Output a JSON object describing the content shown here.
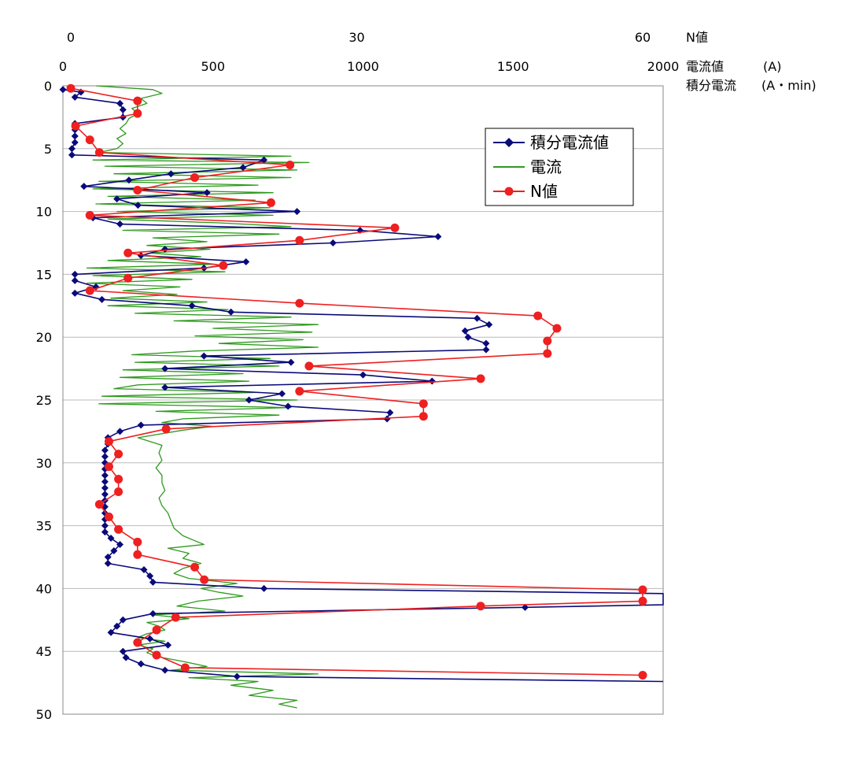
{
  "chart_data": {
    "type": "line",
    "y_axis": {
      "ticks": [
        0,
        5,
        10,
        15,
        20,
        25,
        30,
        35,
        40,
        45,
        50
      ],
      "range": [
        0,
        50
      ],
      "reversed": true
    },
    "x_axis_current": {
      "ticks": [
        0,
        500,
        1000,
        1500,
        2000
      ],
      "range": [
        0,
        2000
      ],
      "label": "電流値",
      "unit": "(A)"
    },
    "x_axis_integral": {
      "label": "積分電流",
      "unit": "(A・min)"
    },
    "x_axis_n": {
      "ticks": [
        0,
        30,
        60
      ],
      "range": [
        0,
        60
      ],
      "label": "N値"
    },
    "grid": "horizontal",
    "legend": {
      "position": "top-right",
      "entries": [
        "積分電流値",
        "電流",
        "N値"
      ]
    },
    "colors": {
      "integral": "#0a0a7a",
      "current": "#2e9a1e",
      "n": "#ee2020",
      "grid": "#bbbbbb"
    },
    "series": [
      {
        "name": "積分電流値",
        "axis": "x_axis_current",
        "points": [
          [
            0,
            0.3
          ],
          [
            60,
            0.5
          ],
          [
            40,
            0.9
          ],
          [
            190,
            1.4
          ],
          [
            200,
            1.9
          ],
          [
            200,
            2.5
          ],
          [
            40,
            3.0
          ],
          [
            40,
            3.5
          ],
          [
            40,
            4.0
          ],
          [
            40,
            4.5
          ],
          [
            30,
            5.0
          ],
          [
            30,
            5.5
          ],
          [
            670,
            5.9
          ],
          [
            600,
            6.5
          ],
          [
            360,
            7.0
          ],
          [
            220,
            7.5
          ],
          [
            70,
            8.0
          ],
          [
            480,
            8.5
          ],
          [
            180,
            9.0
          ],
          [
            250,
            9.5
          ],
          [
            780,
            10.0
          ],
          [
            100,
            10.5
          ],
          [
            190,
            11.0
          ],
          [
            990,
            11.5
          ],
          [
            1250,
            12.0
          ],
          [
            900,
            12.5
          ],
          [
            340,
            13.0
          ],
          [
            260,
            13.5
          ],
          [
            610,
            14.0
          ],
          [
            470,
            14.5
          ],
          [
            40,
            15.0
          ],
          [
            40,
            15.5
          ],
          [
            110,
            16.0
          ],
          [
            40,
            16.5
          ],
          [
            130,
            17.0
          ],
          [
            430,
            17.5
          ],
          [
            560,
            18.0
          ],
          [
            1380,
            18.5
          ],
          [
            1420,
            19.0
          ],
          [
            1340,
            19.5
          ],
          [
            1350,
            20.0
          ],
          [
            1410,
            20.5
          ],
          [
            1410,
            21.0
          ],
          [
            470,
            21.5
          ],
          [
            760,
            22.0
          ],
          [
            340,
            22.5
          ],
          [
            1000,
            23.0
          ],
          [
            1230,
            23.5
          ],
          [
            340,
            24.0
          ],
          [
            730,
            24.5
          ],
          [
            620,
            25.0
          ],
          [
            750,
            25.5
          ],
          [
            1090,
            26.0
          ],
          [
            1080,
            26.5
          ],
          [
            260,
            27.0
          ],
          [
            190,
            27.5
          ],
          [
            150,
            28.0
          ],
          [
            150,
            28.5
          ],
          [
            140,
            29.0
          ],
          [
            140,
            29.5
          ],
          [
            140,
            30.0
          ],
          [
            140,
            30.5
          ],
          [
            140,
            31.0
          ],
          [
            140,
            31.5
          ],
          [
            140,
            32.0
          ],
          [
            140,
            32.5
          ],
          [
            140,
            33.0
          ],
          [
            140,
            33.5
          ],
          [
            140,
            34.0
          ],
          [
            140,
            34.5
          ],
          [
            140,
            35.0
          ],
          [
            140,
            35.5
          ],
          [
            160,
            36.0
          ],
          [
            190,
            36.5
          ],
          [
            170,
            37.0
          ],
          [
            150,
            37.5
          ],
          [
            150,
            38.0
          ],
          [
            270,
            38.5
          ],
          [
            290,
            39.0
          ],
          [
            300,
            39.5
          ],
          [
            670,
            40.0
          ],
          [
            2000,
            40.4
          ],
          [
            2000,
            41.3
          ],
          [
            1540,
            41.5
          ],
          [
            300,
            42.0
          ],
          [
            200,
            42.5
          ],
          [
            180,
            43.0
          ],
          [
            160,
            43.5
          ],
          [
            290,
            44.0
          ],
          [
            350,
            44.5
          ],
          [
            200,
            45.0
          ],
          [
            210,
            45.5
          ],
          [
            260,
            46.0
          ],
          [
            340,
            46.5
          ],
          [
            580,
            47.0
          ],
          [
            2000,
            47.4
          ]
        ]
      },
      {
        "name": "電流",
        "axis": "x_axis_current",
        "points": [
          [
            110,
            0
          ],
          [
            300,
            0.3
          ],
          [
            330,
            0.6
          ],
          [
            260,
            1.0
          ],
          [
            280,
            1.4
          ],
          [
            230,
            1.8
          ],
          [
            250,
            2.2
          ],
          [
            220,
            2.6
          ],
          [
            210,
            3.0
          ],
          [
            190,
            3.4
          ],
          [
            210,
            3.8
          ],
          [
            180,
            4.2
          ],
          [
            200,
            4.6
          ],
          [
            180,
            5.0
          ],
          [
            120,
            5.3
          ],
          [
            760,
            5.6
          ],
          [
            100,
            5.9
          ],
          [
            820,
            6.1
          ],
          [
            140,
            6.4
          ],
          [
            780,
            6.7
          ],
          [
            170,
            7.0
          ],
          [
            760,
            7.3
          ],
          [
            120,
            7.6
          ],
          [
            650,
            7.9
          ],
          [
            100,
            8.2
          ],
          [
            700,
            8.5
          ],
          [
            150,
            8.8
          ],
          [
            640,
            9.1
          ],
          [
            110,
            9.4
          ],
          [
            690,
            9.7
          ],
          [
            180,
            10.0
          ],
          [
            700,
            10.3
          ],
          [
            150,
            10.6
          ],
          [
            520,
            10.9
          ],
          [
            760,
            11.2
          ],
          [
            200,
            11.5
          ],
          [
            720,
            11.8
          ],
          [
            300,
            12.1
          ],
          [
            480,
            12.4
          ],
          [
            280,
            12.7
          ],
          [
            490,
            13.0
          ],
          [
            290,
            13.3
          ],
          [
            460,
            13.6
          ],
          [
            150,
            13.9
          ],
          [
            510,
            14.2
          ],
          [
            80,
            14.5
          ],
          [
            540,
            14.8
          ],
          [
            100,
            15.1
          ],
          [
            430,
            15.4
          ],
          [
            80,
            15.7
          ],
          [
            390,
            16.0
          ],
          [
            200,
            16.3
          ],
          [
            380,
            16.6
          ],
          [
            160,
            16.9
          ],
          [
            480,
            17.2
          ],
          [
            150,
            17.5
          ],
          [
            550,
            17.8
          ],
          [
            240,
            18.1
          ],
          [
            760,
            18.4
          ],
          [
            370,
            18.7
          ],
          [
            850,
            19.0
          ],
          [
            500,
            19.3
          ],
          [
            830,
            19.6
          ],
          [
            440,
            19.9
          ],
          [
            800,
            20.2
          ],
          [
            520,
            20.5
          ],
          [
            850,
            20.8
          ],
          [
            440,
            21.1
          ],
          [
            230,
            21.4
          ],
          [
            690,
            21.7
          ],
          [
            240,
            22.0
          ],
          [
            720,
            22.3
          ],
          [
            200,
            22.6
          ],
          [
            600,
            22.9
          ],
          [
            190,
            23.2
          ],
          [
            620,
            23.5
          ],
          [
            250,
            23.8
          ],
          [
            170,
            24.1
          ],
          [
            650,
            24.4
          ],
          [
            130,
            24.7
          ],
          [
            780,
            25.0
          ],
          [
            120,
            25.3
          ],
          [
            760,
            25.6
          ],
          [
            310,
            25.9
          ],
          [
            720,
            26.2
          ],
          [
            400,
            26.5
          ],
          [
            330,
            26.8
          ],
          [
            500,
            27.1
          ],
          [
            400,
            27.4
          ],
          [
            250,
            28.0
          ],
          [
            330,
            28.6
          ],
          [
            320,
            29.2
          ],
          [
            330,
            29.8
          ],
          [
            310,
            30.4
          ],
          [
            330,
            31.0
          ],
          [
            330,
            31.6
          ],
          [
            340,
            32.2
          ],
          [
            320,
            32.8
          ],
          [
            330,
            33.4
          ],
          [
            350,
            34.0
          ],
          [
            360,
            34.6
          ],
          [
            370,
            35.2
          ],
          [
            400,
            35.8
          ],
          [
            440,
            36.2
          ],
          [
            470,
            36.5
          ],
          [
            350,
            36.8
          ],
          [
            420,
            37.2
          ],
          [
            400,
            37.6
          ],
          [
            460,
            38.0
          ],
          [
            400,
            38.4
          ],
          [
            370,
            38.8
          ],
          [
            420,
            39.2
          ],
          [
            580,
            39.6
          ],
          [
            460,
            40.0
          ],
          [
            520,
            40.3
          ],
          [
            600,
            40.6
          ],
          [
            450,
            41.0
          ],
          [
            380,
            41.4
          ],
          [
            540,
            41.8
          ],
          [
            300,
            42.1
          ],
          [
            420,
            42.4
          ],
          [
            280,
            42.7
          ],
          [
            320,
            43.0
          ],
          [
            340,
            43.3
          ],
          [
            280,
            43.6
          ],
          [
            250,
            43.9
          ],
          [
            340,
            44.2
          ],
          [
            250,
            44.5
          ],
          [
            300,
            44.8
          ],
          [
            280,
            45.1
          ],
          [
            310,
            45.4
          ],
          [
            400,
            45.8
          ],
          [
            480,
            46.2
          ],
          [
            360,
            46.5
          ],
          [
            850,
            46.8
          ],
          [
            420,
            47.1
          ],
          [
            650,
            47.4
          ],
          [
            560,
            47.7
          ],
          [
            700,
            48.1
          ],
          [
            620,
            48.5
          ],
          [
            780,
            48.9
          ],
          [
            720,
            49.2
          ],
          [
            780,
            49.5
          ]
        ]
      },
      {
        "name": "N値",
        "axis": "x_axis_n",
        "points": [
          [
            0,
            0.2
          ],
          [
            7,
            1.2
          ],
          [
            7,
            2.2
          ],
          [
            0.5,
            3.2
          ],
          [
            2,
            4.3
          ],
          [
            3,
            5.3
          ],
          [
            23,
            6.3
          ],
          [
            13,
            7.3
          ],
          [
            7,
            8.3
          ],
          [
            21,
            9.3
          ],
          [
            2,
            10.3
          ],
          [
            34,
            11.3
          ],
          [
            24,
            12.3
          ],
          [
            6,
            13.3
          ],
          [
            16,
            14.3
          ],
          [
            6,
            15.3
          ],
          [
            2,
            16.3
          ],
          [
            24,
            17.3
          ],
          [
            49,
            18.3
          ],
          [
            51,
            19.3
          ],
          [
            50,
            20.3
          ],
          [
            50,
            21.3
          ],
          [
            25,
            22.3
          ],
          [
            43,
            23.3
          ],
          [
            24,
            24.3
          ],
          [
            37,
            25.3
          ],
          [
            37,
            26.3
          ],
          [
            10,
            27.3
          ],
          [
            4,
            28.3
          ],
          [
            5,
            29.3
          ],
          [
            4,
            30.3
          ],
          [
            5,
            31.3
          ],
          [
            5,
            32.3
          ],
          [
            3,
            33.3
          ],
          [
            4,
            34.3
          ],
          [
            5,
            35.3
          ],
          [
            7,
            36.3
          ],
          [
            7,
            37.3
          ],
          [
            13,
            38.3
          ],
          [
            14,
            39.3
          ],
          [
            60,
            40.1
          ],
          [
            60,
            41.0
          ],
          [
            43,
            41.4
          ],
          [
            11,
            42.3
          ],
          [
            9,
            43.3
          ],
          [
            7,
            44.3
          ],
          [
            9,
            45.3
          ],
          [
            12,
            46.3
          ],
          [
            60,
            46.9
          ]
        ]
      }
    ]
  }
}
